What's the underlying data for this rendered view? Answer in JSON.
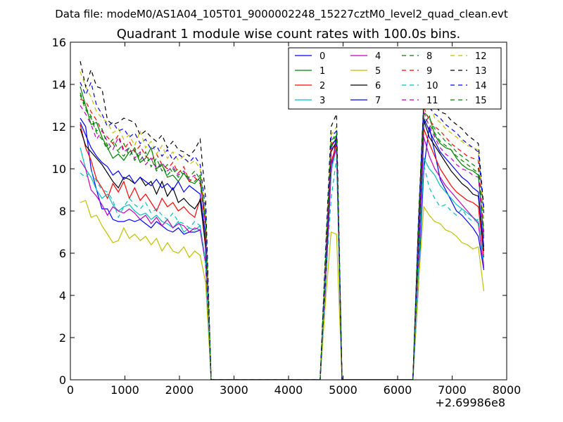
{
  "suptitle": "Data file: modeM0/AS1A04_105T01_9000002248_15227cztM0_level2_quad_clean.evt",
  "chart_data": {
    "type": "line",
    "title": "Quadrant 1 module wise count rates with 100.0s bins.",
    "xlabel": "",
    "ylabel": "",
    "xlim": [
      0,
      8000
    ],
    "ylim": [
      0,
      16
    ],
    "x_offset_label": "+2.69986e8",
    "x_ticks": [
      0,
      1000,
      2000,
      3000,
      4000,
      5000,
      6000,
      7000,
      8000
    ],
    "x_tick_labels": [
      "0",
      "1000",
      "2000",
      "3000",
      "4000",
      "5000",
      "6000",
      "7000",
      "8000"
    ],
    "y_ticks": [
      0,
      2,
      4,
      6,
      8,
      10,
      12,
      14,
      16
    ],
    "y_tick_labels": [
      "0",
      "2",
      "4",
      "6",
      "8",
      "10",
      "12",
      "14",
      "16"
    ],
    "legend_position": "top-right",
    "segments": [
      {
        "x_start": 180,
        "x_step": 100,
        "n": 24
      },
      {
        "x_start": 2580,
        "x_step": 100,
        "n": 20
      },
      {
        "x_start": 4580,
        "x_step": 100,
        "n": 5
      },
      {
        "x_start": 5080,
        "x_step": 100,
        "n": 12
      },
      {
        "x_start": 6280,
        "x_step": 100,
        "n": 14
      }
    ],
    "series": [
      {
        "name": "0",
        "color": "#0000ff",
        "dash": "solid",
        "seg1": [
          12.4,
          12.0,
          10.0,
          9.0,
          8.1,
          8.1,
          7.6,
          7.5,
          7.5,
          7.6,
          7.5,
          7.6,
          7.4,
          7.2,
          7.5,
          7.3,
          7.1,
          7.0,
          7.2,
          6.9,
          7.0,
          7.0,
          7.1,
          5.5
        ],
        "pulse": [
          0,
          4.5,
          9.8,
          11.6,
          0
        ],
        "seg3": [
          0,
          4.4,
          10.0,
          12.0,
          10.8,
          9.5,
          9.0,
          8.5,
          8.0,
          7.8,
          7.5,
          7.2,
          6.8,
          5.2
        ]
      },
      {
        "name": "1",
        "color": "#008000",
        "dash": "solid",
        "seg1": [
          13.9,
          13.0,
          12.1,
          12.2,
          11.5,
          11.0,
          10.5,
          10.7,
          10.4,
          10.8,
          10.9,
          10.3,
          10.5,
          11.0,
          10.0,
          10.2,
          9.6,
          9.7,
          9.4,
          9.8,
          9.4,
          9.3,
          9.6,
          7.5
        ],
        "pulse": [
          0,
          5.5,
          11.0,
          11.5,
          0
        ],
        "seg3": [
          0,
          6.0,
          12.1,
          12.5,
          11.6,
          11.2,
          11.0,
          10.9,
          10.5,
          10.2,
          10.0,
          9.9,
          9.7,
          6.8
        ]
      },
      {
        "name": "2",
        "color": "#ff0000",
        "dash": "solid",
        "seg1": [
          12.1,
          11.0,
          10.4,
          9.5,
          9.1,
          8.6,
          9.3,
          8.9,
          9.4,
          8.6,
          9.1,
          8.5,
          8.8,
          8.4,
          8.0,
          8.6,
          8.2,
          8.4,
          8.0,
          8.2,
          7.9,
          7.7,
          8.6,
          6.2
        ],
        "pulse": [
          0,
          5.2,
          10.3,
          11.2,
          0
        ],
        "seg3": [
          0,
          6.4,
          11.9,
          11.2,
          10.6,
          10.0,
          9.6,
          9.2,
          8.9,
          8.7,
          8.5,
          8.4,
          8.2,
          5.8
        ]
      },
      {
        "name": "3",
        "color": "#00bfbf",
        "dash": "solid",
        "seg1": [
          11.0,
          10.0,
          9.6,
          9.0,
          8.6,
          8.8,
          8.3,
          8.0,
          8.2,
          8.3,
          8.0,
          7.8,
          7.9,
          7.6,
          7.8,
          7.5,
          7.4,
          7.2,
          7.5,
          7.0,
          7.2,
          7.1,
          7.3,
          5.6
        ],
        "pulse": [
          0,
          4.8,
          9.9,
          11.0,
          0
        ],
        "seg3": [
          0,
          5.0,
          10.5,
          10.0,
          9.7,
          9.2,
          8.9,
          8.6,
          8.3,
          8.1,
          7.9,
          7.7,
          7.5,
          5.4
        ]
      },
      {
        "name": "4",
        "color": "#bf00bf",
        "dash": "solid",
        "seg1": [
          10.4,
          10.0,
          9.0,
          8.7,
          8.3,
          7.8,
          8.2,
          8.0,
          7.9,
          8.1,
          7.9,
          7.6,
          7.8,
          7.4,
          7.7,
          7.3,
          7.6,
          7.2,
          7.4,
          7.3,
          7.0,
          7.2,
          7.1,
          5.5
        ],
        "pulse": [
          0,
          4.6,
          10.2,
          11.0,
          0
        ],
        "seg3": [
          0,
          5.6,
          11.5,
          10.6,
          10.0,
          9.6,
          9.2,
          8.9,
          8.6,
          8.3,
          8.0,
          7.7,
          7.4,
          5.3
        ]
      },
      {
        "name": "5",
        "color": "#bfbf00",
        "dash": "solid",
        "seg1": [
          8.4,
          8.5,
          7.7,
          7.8,
          7.3,
          6.9,
          6.5,
          6.6,
          7.2,
          6.7,
          6.9,
          6.6,
          6.8,
          6.4,
          6.7,
          6.1,
          6.5,
          6.1,
          6.0,
          6.3,
          5.8,
          6.1,
          5.9,
          4.6
        ],
        "pulse": [
          0,
          3.8,
          7.0,
          6.9,
          0
        ],
        "seg3": [
          0,
          4.5,
          8.2,
          7.8,
          7.5,
          7.4,
          7.1,
          7.0,
          6.8,
          6.5,
          6.4,
          6.2,
          6.3,
          4.2
        ]
      },
      {
        "name": "6",
        "color": "#000000",
        "dash": "solid",
        "seg1": [
          11.9,
          11.1,
          10.8,
          10.5,
          10.2,
          9.8,
          9.4,
          9.1,
          9.6,
          9.5,
          9.3,
          9.6,
          9.2,
          9.4,
          8.8,
          9.4,
          8.7,
          9.1,
          8.4,
          8.6,
          8.3,
          8.1,
          8.5,
          6.4
        ],
        "pulse": [
          0,
          5.0,
          10.8,
          11.3,
          0
        ],
        "seg3": [
          0,
          6.1,
          12.3,
          11.5,
          11.1,
          10.7,
          10.3,
          9.9,
          9.6,
          9.3,
          9.1,
          8.8,
          8.7,
          6.1
        ]
      },
      {
        "name": "7",
        "color": "#0000ff",
        "dash": "solid",
        "seg1": [
          12.2,
          11.6,
          11.0,
          10.6,
          10.3,
          10.1,
          9.7,
          9.9,
          9.5,
          9.7,
          9.3,
          9.6,
          9.4,
          9.2,
          9.5,
          9.1,
          9.3,
          9.0,
          9.4,
          8.9,
          9.2,
          9.0,
          8.8,
          6.8
        ],
        "pulse": [
          0,
          5.3,
          11.1,
          11.4,
          0
        ],
        "seg3": [
          0,
          6.5,
          12.4,
          11.8,
          11.3,
          10.8,
          10.5,
          10.2,
          9.9,
          9.6,
          9.4,
          9.1,
          8.9,
          6.3
        ]
      },
      {
        "name": "8",
        "color": "#008000",
        "dash": "dashed",
        "seg1": [
          13.5,
          12.8,
          12.4,
          11.7,
          11.4,
          10.9,
          11.2,
          10.8,
          10.6,
          11.0,
          10.4,
          10.7,
          10.3,
          10.5,
          9.9,
          10.2,
          9.7,
          10.0,
          9.6,
          9.8,
          9.5,
          9.4,
          9.7,
          7.4
        ],
        "pulse": [
          0,
          5.6,
          11.2,
          11.6,
          0
        ],
        "seg3": [
          0,
          6.6,
          12.5,
          12.1,
          11.7,
          11.3,
          11.1,
          10.9,
          10.6,
          10.4,
          10.2,
          10.0,
          9.8,
          6.9
        ]
      },
      {
        "name": "9",
        "color": "#ff0000",
        "dash": "dashed",
        "seg1": [
          13.3,
          13.2,
          12.7,
          12.3,
          11.8,
          11.5,
          11.2,
          11.6,
          10.9,
          11.3,
          10.8,
          11.1,
          10.6,
          10.4,
          10.7,
          10.2,
          10.0,
          10.3,
          9.8,
          10.1,
          9.4,
          9.6,
          9.3,
          7.2
        ],
        "pulse": [
          0,
          5.7,
          11.1,
          11.5,
          0
        ],
        "seg3": [
          0,
          7.0,
          12.9,
          12.3,
          12.0,
          11.8,
          11.5,
          11.2,
          11.0,
          10.8,
          10.6,
          10.5,
          10.4,
          7.0
        ]
      },
      {
        "name": "10",
        "color": "#00bfbf",
        "dash": "dashed",
        "seg1": [
          9.8,
          9.6,
          9.9,
          9.4,
          9.0,
          8.9,
          8.5,
          7.7,
          8.2,
          8.6,
          8.3,
          8.1,
          8.4,
          7.9,
          8.1,
          7.8,
          7.6,
          7.9,
          7.5,
          7.4,
          7.2,
          7.5,
          7.3,
          5.6
        ],
        "pulse": [
          0,
          4.7,
          8.6,
          10.5,
          0
        ],
        "seg3": [
          0,
          5.3,
          10.2,
          9.1,
          8.6,
          8.2,
          8.3,
          8.0,
          7.8,
          8.1,
          7.7,
          7.5,
          7.6,
          5.5
        ]
      },
      {
        "name": "11",
        "color": "#bf00bf",
        "dash": "dashed",
        "seg1": [
          13.0,
          12.6,
          12.1,
          11.4,
          11.8,
          11.3,
          10.9,
          11.5,
          10.8,
          11.0,
          10.5,
          10.8,
          10.2,
          10.5,
          10.0,
          10.3,
          9.9,
          10.1,
          9.7,
          9.9,
          9.5,
          9.7,
          9.4,
          7.3
        ],
        "pulse": [
          0,
          5.4,
          10.9,
          11.3,
          0
        ],
        "seg3": [
          0,
          6.2,
          12.7,
          12.0,
          11.5,
          11.0,
          10.7,
          10.5,
          10.2,
          10.0,
          9.9,
          9.7,
          9.6,
          6.7
        ]
      },
      {
        "name": "12",
        "color": "#bfbf00",
        "dash": "dashed",
        "seg1": [
          14.6,
          13.9,
          13.4,
          12.7,
          12.4,
          12.2,
          11.7,
          11.9,
          11.4,
          11.6,
          11.1,
          11.8,
          11.0,
          11.3,
          10.7,
          11.1,
          10.5,
          10.8,
          10.4,
          10.6,
          10.2,
          10.4,
          10.0,
          7.8
        ],
        "pulse": [
          0,
          5.9,
          11.6,
          12.0,
          0
        ],
        "seg3": [
          0,
          7.1,
          13.0,
          13.1,
          12.4,
          12.2,
          11.9,
          11.7,
          11.5,
          11.3,
          11.1,
          11.0,
          10.9,
          7.6
        ]
      },
      {
        "name": "13",
        "color": "#000000",
        "dash": "dashed",
        "seg1": [
          15.1,
          13.9,
          14.7,
          13.9,
          13.8,
          12.3,
          12.1,
          12.2,
          12.4,
          12.3,
          12.2,
          11.6,
          11.8,
          11.5,
          11.3,
          11.6,
          11.0,
          11.3,
          10.9,
          10.8,
          10.6,
          10.9,
          11.4,
          8.6
        ],
        "pulse": [
          0,
          6.2,
          12.0,
          12.6,
          0
        ],
        "seg3": [
          0,
          7.5,
          13.3,
          13.4,
          13.0,
          12.7,
          12.6,
          12.3,
          12.1,
          11.9,
          11.6,
          11.4,
          11.2,
          8.1
        ]
      },
      {
        "name": "14",
        "color": "#0000ff",
        "dash": "dashed",
        "seg1": [
          14.1,
          13.5,
          14.1,
          13.0,
          12.6,
          12.0,
          12.2,
          11.8,
          11.9,
          11.5,
          11.7,
          11.2,
          11.4,
          10.9,
          11.1,
          10.6,
          10.9,
          10.4,
          10.7,
          10.5,
          10.3,
          10.6,
          10.2,
          8.0
        ],
        "pulse": [
          0,
          6.0,
          11.5,
          11.8,
          0
        ],
        "seg3": [
          0,
          7.3,
          13.2,
          12.9,
          12.6,
          12.4,
          12.1,
          11.9,
          11.7,
          11.4,
          11.2,
          11.0,
          10.8,
          7.9
        ]
      },
      {
        "name": "15",
        "color": "#008000",
        "dash": "dashed",
        "seg1": [
          13.6,
          12.9,
          12.5,
          11.8,
          11.9,
          11.1,
          11.4,
          10.9,
          11.2,
          10.6,
          11.0,
          10.4,
          10.8,
          10.1,
          10.5,
          9.9,
          10.2,
          9.8,
          10.0,
          9.7,
          9.6,
          9.9,
          9.5,
          7.5
        ],
        "pulse": [
          0,
          5.8,
          11.3,
          11.7,
          0
        ],
        "seg3": [
          0,
          6.9,
          12.7,
          12.4,
          11.9,
          11.6,
          11.3,
          11.1,
          10.8,
          10.6,
          10.4,
          10.2,
          10.0,
          7.1
        ]
      }
    ]
  }
}
